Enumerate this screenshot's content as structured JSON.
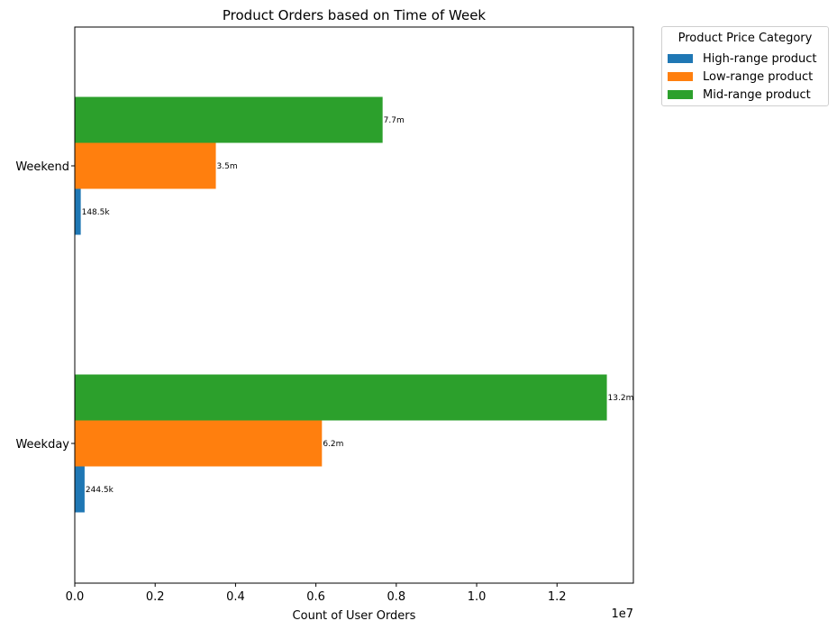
{
  "chart_data": {
    "type": "bar",
    "orientation": "horizontal",
    "title": "Product Orders based on Time of Week",
    "xlabel": "Count of User Orders",
    "ylabel": "",
    "x_offset_label": "1e7",
    "xlim": [
      0,
      13900000
    ],
    "x_ticks": [
      0,
      2000000,
      4000000,
      6000000,
      8000000,
      10000000,
      12000000
    ],
    "x_tick_labels": [
      "0.0",
      "0.2",
      "0.4",
      "0.6",
      "0.8",
      "1.0",
      "1.2"
    ],
    "categories": [
      "Weekday",
      "Weekend"
    ],
    "series": [
      {
        "name": "High-range product",
        "color": "#1f77b4",
        "values": [
          244500,
          148500
        ],
        "labels": [
          "244.5k",
          "148.5k"
        ]
      },
      {
        "name": "Low-range product",
        "color": "#ff7f0e",
        "values": [
          6150000,
          3510000
        ],
        "labels": [
          "6.2m",
          "3.5m"
        ]
      },
      {
        "name": "Mid-range product",
        "color": "#2ca02c",
        "values": [
          13240000,
          7660000
        ],
        "labels": [
          "13.2m",
          "7.7m"
        ]
      }
    ],
    "legend": {
      "title": "Product Price Category",
      "placement": "outside-top-right"
    },
    "grid": false
  }
}
